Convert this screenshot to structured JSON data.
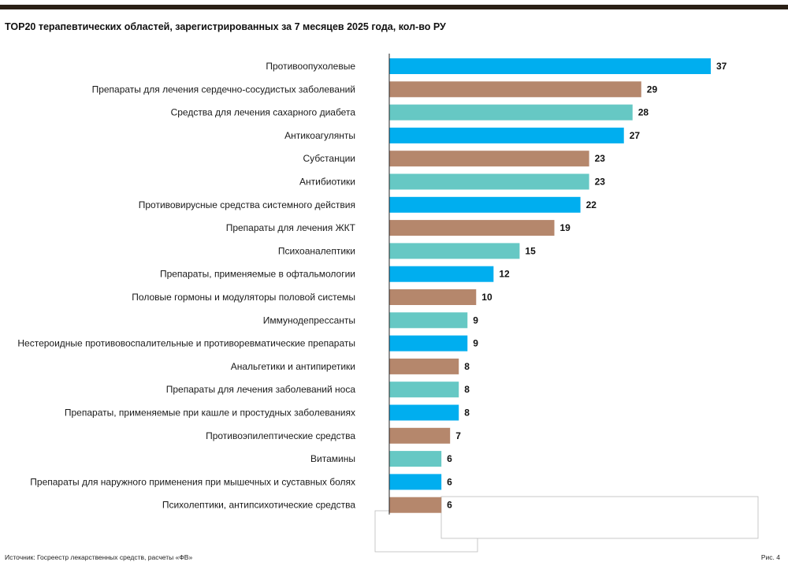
{
  "chart_data": {
    "type": "bar",
    "orientation": "horizontal",
    "title": "TOP20 терапевтических областей, зарегистрированных за 7 месяцев 2025 года, кол-во РУ",
    "xlabel": "",
    "ylabel": "",
    "xlim": [
      0,
      37
    ],
    "categories": [
      "Противоопухолевые",
      "Препараты для лечения сердечно-сосудистых заболеваний",
      "Средства для лечения сахарного диабета",
      "Антикоагулянты",
      "Субстанции",
      "Антибиотики",
      "Противовирусные средства системного действия",
      "Препараты для лечения ЖКТ",
      "Психоаналептики",
      "Препараты, применяемые в офтальмологии",
      "Половые гормоны и модуляторы половой системы",
      "Иммунодепрессанты",
      "Нестероидные противовоспалительные и противоревматические препараты",
      "Анальгетики и антипиретики",
      "Препараты для лечения заболеваний носа",
      "Препараты, применяемые при кашле и простудных заболеваниях",
      "Противоэпилептические средства",
      "Витамины",
      "Препараты для наружного применения при мышечных и суставных болях",
      "Психолептики, антипсихотические средства"
    ],
    "values": [
      37,
      29,
      28,
      27,
      23,
      23,
      22,
      19,
      15,
      12,
      10,
      9,
      9,
      8,
      8,
      8,
      7,
      6,
      6,
      6
    ],
    "color_cycle": [
      "#00aeef",
      "#b5876c",
      "#66c8c4"
    ]
  },
  "footer": {
    "source": "Источник: Госреестр лекарственных средств, расчеты «ФВ»",
    "figure": "Рис. 4"
  }
}
